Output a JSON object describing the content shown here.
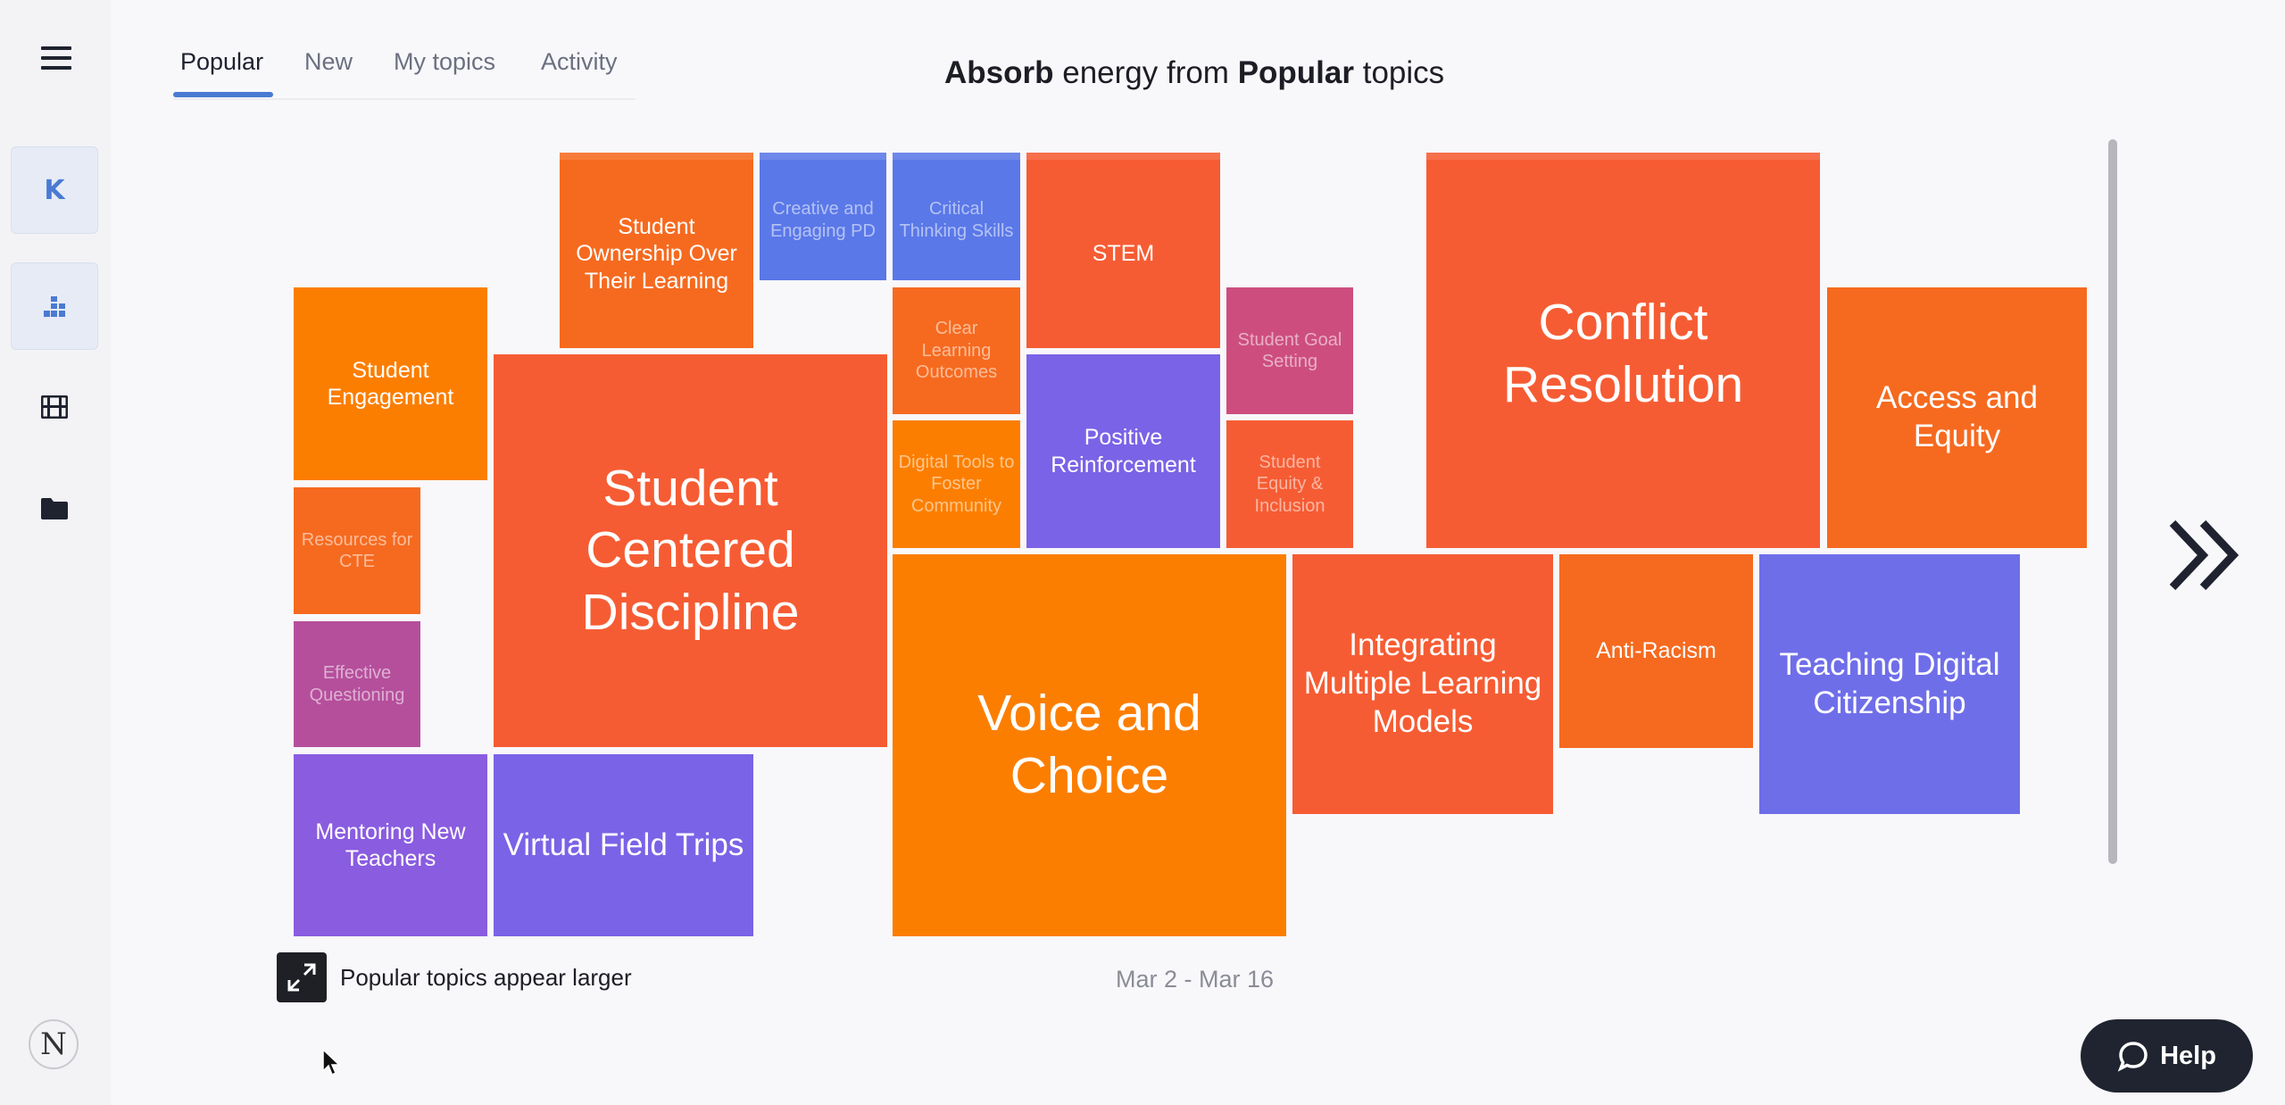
{
  "tabs": [
    {
      "label": "Popular",
      "active": true
    },
    {
      "label": "New",
      "active": false
    },
    {
      "label": "My topics",
      "active": false
    },
    {
      "label": "Activity",
      "active": false
    }
  ],
  "headline": {
    "part1": "Absorb",
    "part2": " energy from ",
    "part3": "Popular",
    "part4": " topics"
  },
  "sidebar": {
    "avatar_letter": "K",
    "icons": [
      "hamburger-menu-icon",
      "bar-chart-icon",
      "film-icon",
      "folder-icon"
    ],
    "logo_letter": "N"
  },
  "colors": {
    "orange": "#fc7e00",
    "orange_red": "#f65c33",
    "deep_orange": "#f66a1f",
    "blue": "#5a78e8",
    "indigo": "#6f6ee9",
    "purple": "#8a5ce0",
    "pink": "#cd4e7e",
    "magenta": "#b54f9c"
  },
  "topics": [
    {
      "label": "Student Ownership Over Their Learning",
      "color": "#f66a1f"
    },
    {
      "label": "Creative and Engaging PD",
      "color": "#5a78e8"
    },
    {
      "label": "Critical Thinking Skills",
      "color": "#5a78e8"
    },
    {
      "label": "STEM",
      "color": "#f65c33"
    },
    {
      "label": "Conflict Resolution",
      "color": "#f65c33"
    },
    {
      "label": "Student Engagement",
      "color": "#fc7e00"
    },
    {
      "label": "Clear Learning Outcomes",
      "color": "#f66a1f"
    },
    {
      "label": "Student Goal Setting",
      "color": "#cd4e7e"
    },
    {
      "label": "Access and Equity",
      "color": "#f66a1f"
    },
    {
      "label": "Student Centered Discipline",
      "color": "#f65c33"
    },
    {
      "label": "Positive Reinforcement",
      "color": "#7a63e6"
    },
    {
      "label": "Digital Tools to Foster Community",
      "color": "#fc7e00"
    },
    {
      "label": "Student Equity & Inclusion",
      "color": "#f65c33"
    },
    {
      "label": "Resources for CTE",
      "color": "#f66a1f"
    },
    {
      "label": "Voice and Choice",
      "color": "#fc7e00"
    },
    {
      "label": "Integrating Multiple Learning Models",
      "color": "#f65c33"
    },
    {
      "label": "Anti-Racism",
      "color": "#f66a1f"
    },
    {
      "label": "Teaching Digital Citizenship",
      "color": "#6f6ee9"
    },
    {
      "label": "Effective Questioning",
      "color": "#b54f9c"
    },
    {
      "label": "Mentoring New Teachers",
      "color": "#8a5ce0"
    },
    {
      "label": "Virtual Field Trips",
      "color": "#7a63e6"
    }
  ],
  "legend": {
    "expand_label": "Popular topics appear larger"
  },
  "date_range": "Mar 2 - Mar 16",
  "help": {
    "label": "Help"
  }
}
